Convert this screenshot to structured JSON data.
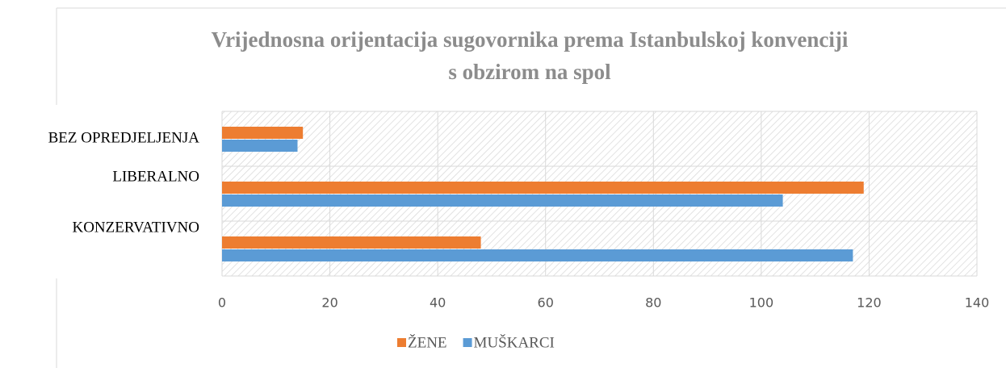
{
  "chart_data": {
    "type": "hbar",
    "title": [
      "Vrijednosna orijentacija sugovornika prema Istanbulskoj konvenciji",
      "s obzirom na spol"
    ],
    "categories": [
      "BEZ OPREDJELJENJA",
      "LIBERALNO",
      "KONZERVATIVNO"
    ],
    "series": [
      {
        "name": "ŽENE",
        "color": "#ed7d31",
        "values": [
          15,
          119,
          48
        ]
      },
      {
        "name": "MUŠKARCI",
        "color": "#5b9bd5",
        "values": [
          14,
          104,
          117
        ]
      }
    ],
    "xlim": [
      0,
      140
    ],
    "xticks": [
      0,
      20,
      40,
      60,
      80,
      100,
      120,
      140
    ],
    "grid": true,
    "legend": "bottom"
  }
}
